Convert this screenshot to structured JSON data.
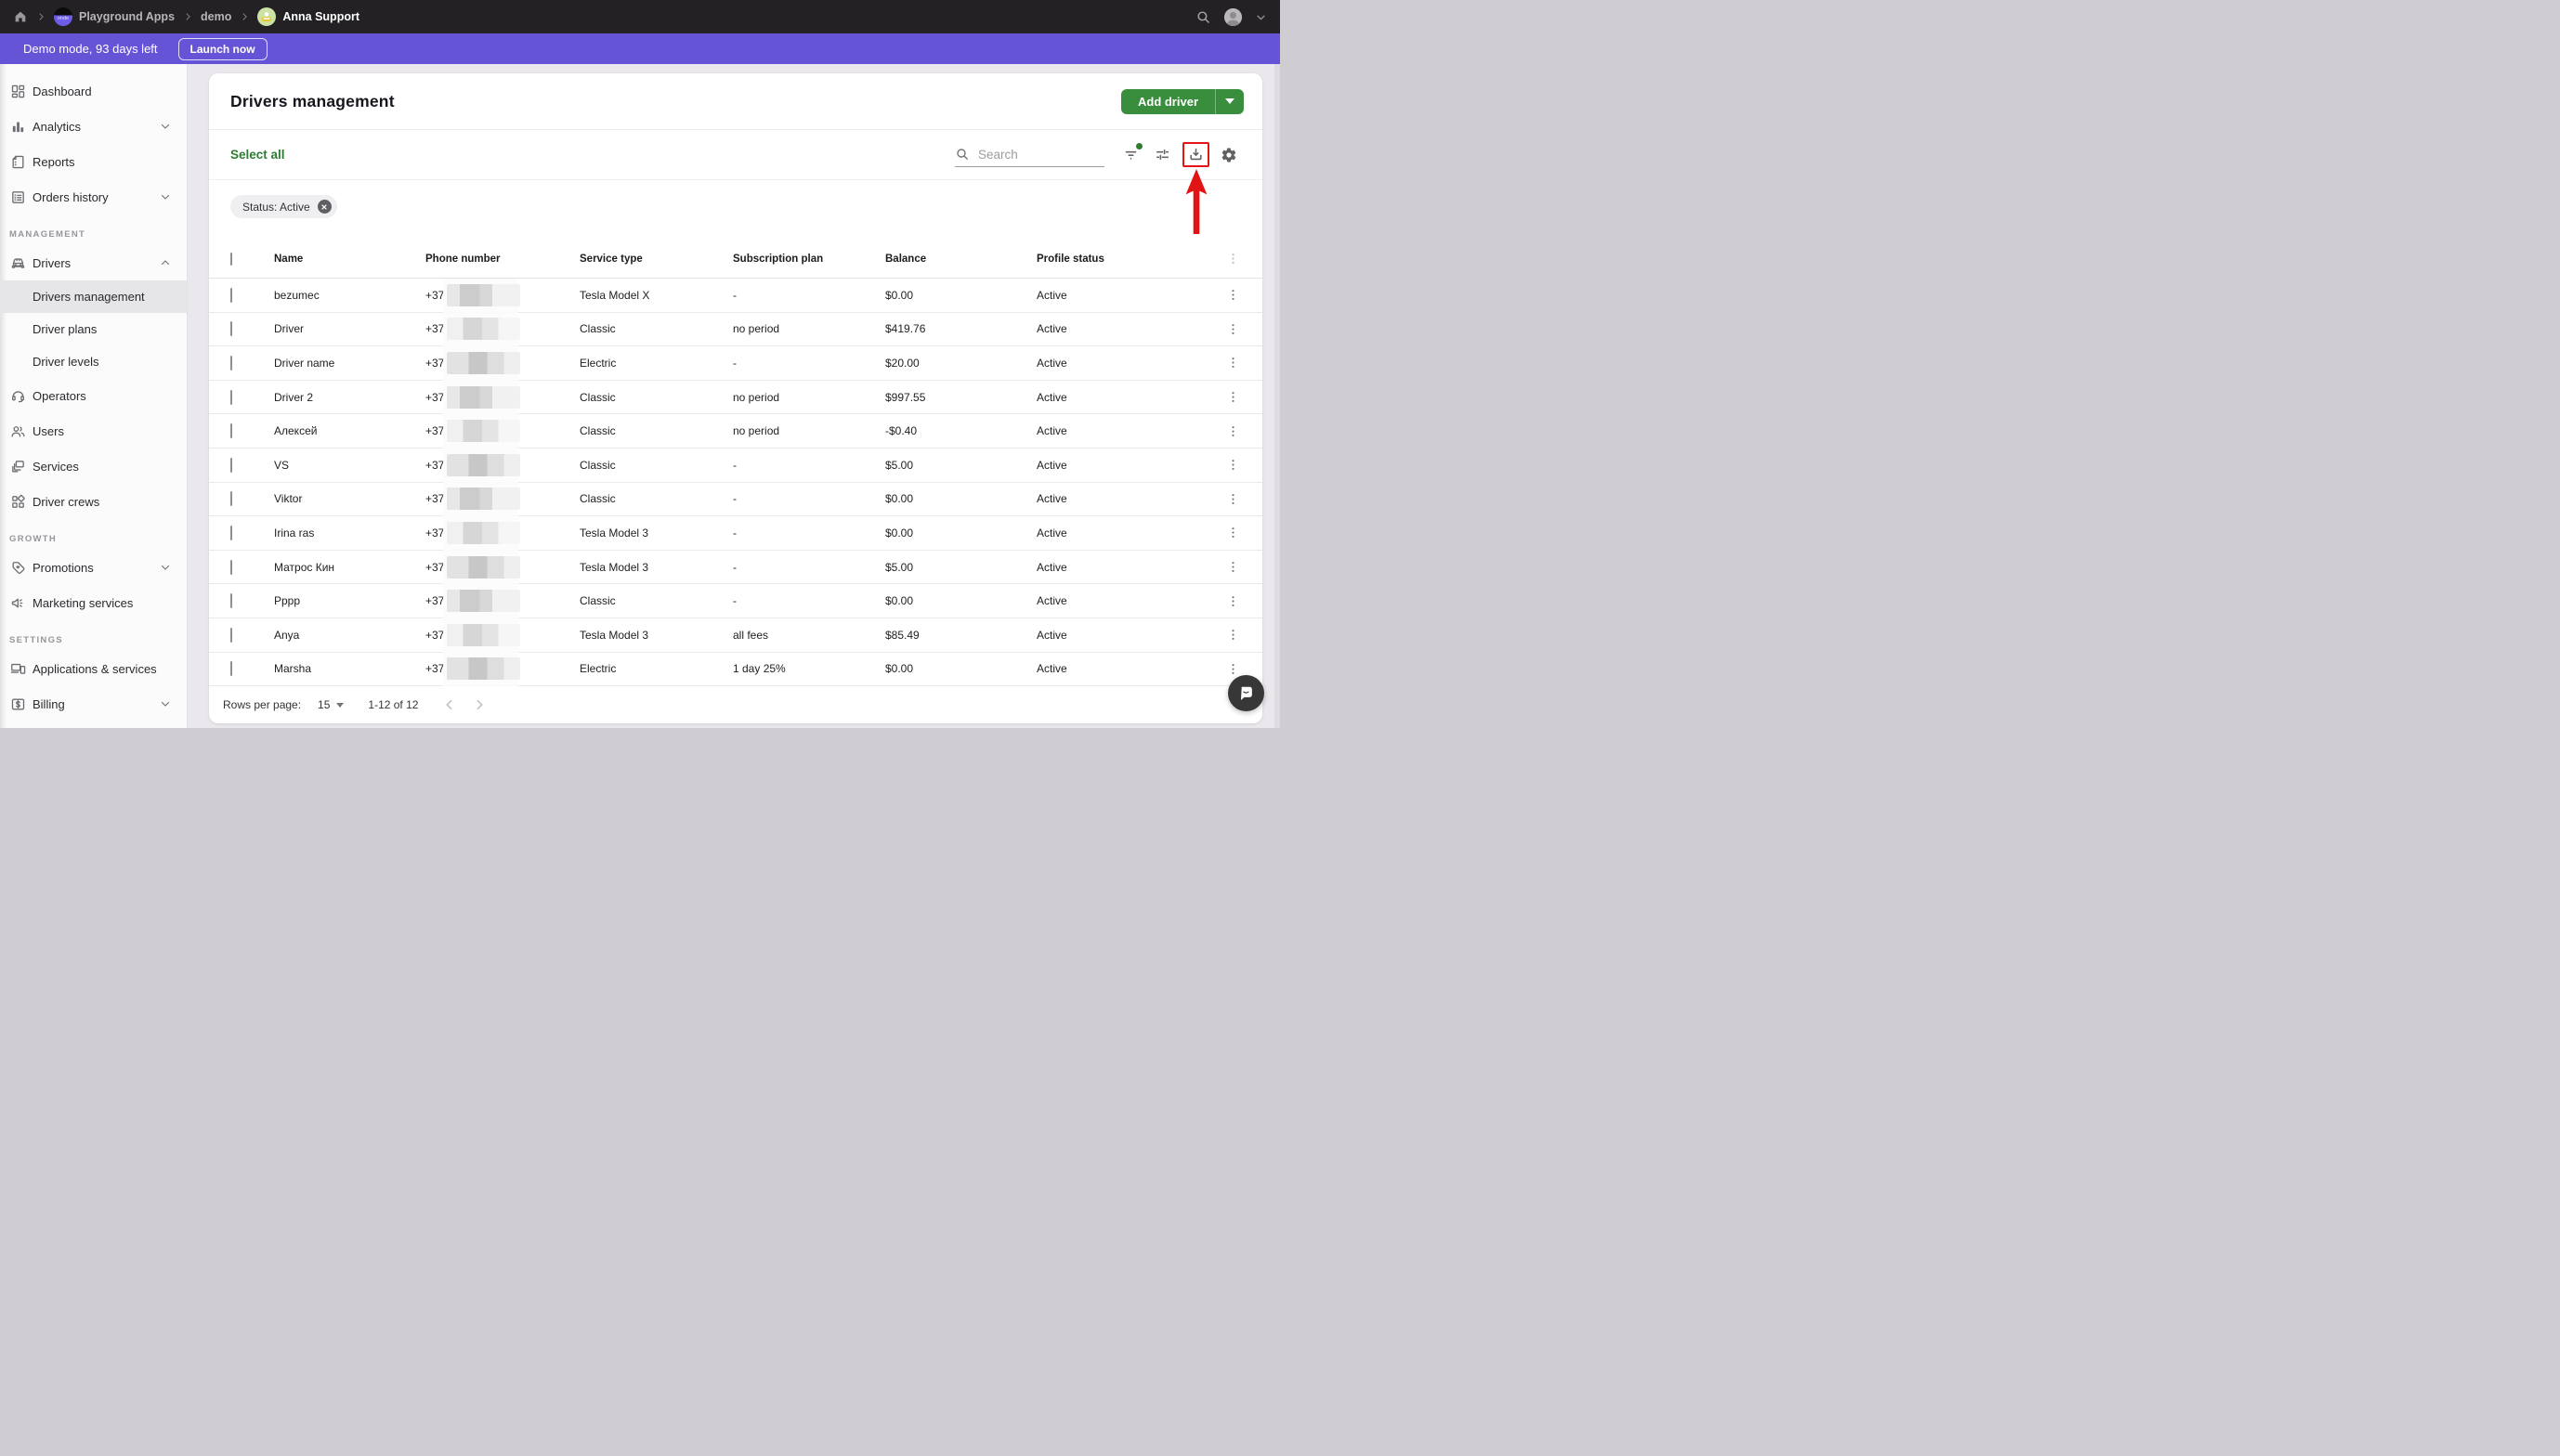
{
  "topbar": {
    "breadcrumb": {
      "logo_text": "onde",
      "app": "Playground Apps",
      "project": "demo",
      "user": "Anna Support"
    }
  },
  "banner": {
    "text": "Demo mode, 93 days left",
    "launch_button": "Launch now"
  },
  "sidebar": {
    "sections": [
      {
        "label": "",
        "items": [
          {
            "label": "Dashboard",
            "icon": "dashboard"
          },
          {
            "label": "Analytics",
            "icon": "analytics",
            "chevron": "down"
          },
          {
            "label": "Reports",
            "icon": "reports"
          },
          {
            "label": "Orders history",
            "icon": "orders",
            "chevron": "down"
          }
        ]
      },
      {
        "label": "MANAGEMENT",
        "items": [
          {
            "label": "Drivers",
            "icon": "drivers",
            "chevron": "up"
          },
          {
            "label": "Drivers management",
            "sub": true,
            "active": true
          },
          {
            "label": "Driver plans",
            "sub": true
          },
          {
            "label": "Driver levels",
            "sub": true
          },
          {
            "label": "Operators",
            "icon": "operators"
          },
          {
            "label": "Users",
            "icon": "users"
          },
          {
            "label": "Services",
            "icon": "services"
          },
          {
            "label": "Driver crews",
            "icon": "crews"
          }
        ]
      },
      {
        "label": "GROWTH",
        "items": [
          {
            "label": "Promotions",
            "icon": "promotions",
            "chevron": "down"
          },
          {
            "label": "Marketing services",
            "icon": "marketing"
          }
        ]
      },
      {
        "label": "SETTINGS",
        "items": [
          {
            "label": "Applications & services",
            "icon": "apps"
          },
          {
            "label": "Billing",
            "icon": "billing",
            "chevron": "down"
          }
        ]
      }
    ]
  },
  "main": {
    "title": "Drivers management",
    "add_driver_label": "Add driver",
    "select_all_label": "Select all",
    "search_placeholder": "Search",
    "filter_chip": {
      "label": "Status: Active"
    },
    "table": {
      "columns": [
        "Name",
        "Phone number",
        "Service type",
        "Subscription plan",
        "Balance",
        "Profile status"
      ],
      "phone_prefix": "+37",
      "rows": [
        {
          "name": "bezumec",
          "service": "Tesla Model X",
          "plan": "-",
          "balance": "$0.00",
          "status": "Active"
        },
        {
          "name": "Driver",
          "service": "Classic",
          "plan": "no period",
          "balance": "$419.76",
          "status": "Active"
        },
        {
          "name": "Driver name",
          "service": "Electric",
          "plan": "-",
          "balance": "$20.00",
          "status": "Active"
        },
        {
          "name": "Driver 2",
          "service": "Classic",
          "plan": "no period",
          "balance": "$997.55",
          "status": "Active"
        },
        {
          "name": "Алексей",
          "service": "Classic",
          "plan": "no period",
          "balance": "-$0.40",
          "status": "Active"
        },
        {
          "name": "VS",
          "service": "Classic",
          "plan": "-",
          "balance": "$5.00",
          "status": "Active"
        },
        {
          "name": "Viktor",
          "service": "Classic",
          "plan": "-",
          "balance": "$0.00",
          "status": "Active"
        },
        {
          "name": "Irina ras",
          "service": "Tesla Model 3",
          "plan": "-",
          "balance": "$0.00",
          "status": "Active"
        },
        {
          "name": "Матрос Кин",
          "service": "Tesla Model 3",
          "plan": "-",
          "balance": "$5.00",
          "status": "Active"
        },
        {
          "name": "Pppp",
          "service": "Classic",
          "plan": "-",
          "balance": "$0.00",
          "status": "Active"
        },
        {
          "name": "Anya",
          "service": "Tesla Model 3",
          "plan": "all fees",
          "balance": "$85.49",
          "status": "Active"
        },
        {
          "name": "Marsha",
          "service": "Electric",
          "plan": "1 day 25%",
          "balance": "$0.00",
          "status": "Active"
        }
      ]
    },
    "footer": {
      "rows_per_page_label": "Rows per page:",
      "rows_per_page_value": "15",
      "range_label": "1-12 of 12"
    }
  },
  "annotation": {
    "target": "export-download-button",
    "shape": "red-box-with-up-arrow",
    "color": "#e31515"
  },
  "colors": {
    "accent_green": "#388e3c",
    "link_green": "#2e7d32",
    "banner_purple": "#6554d6",
    "topbar_dark": "#232124",
    "annotation_red": "#e31515"
  }
}
